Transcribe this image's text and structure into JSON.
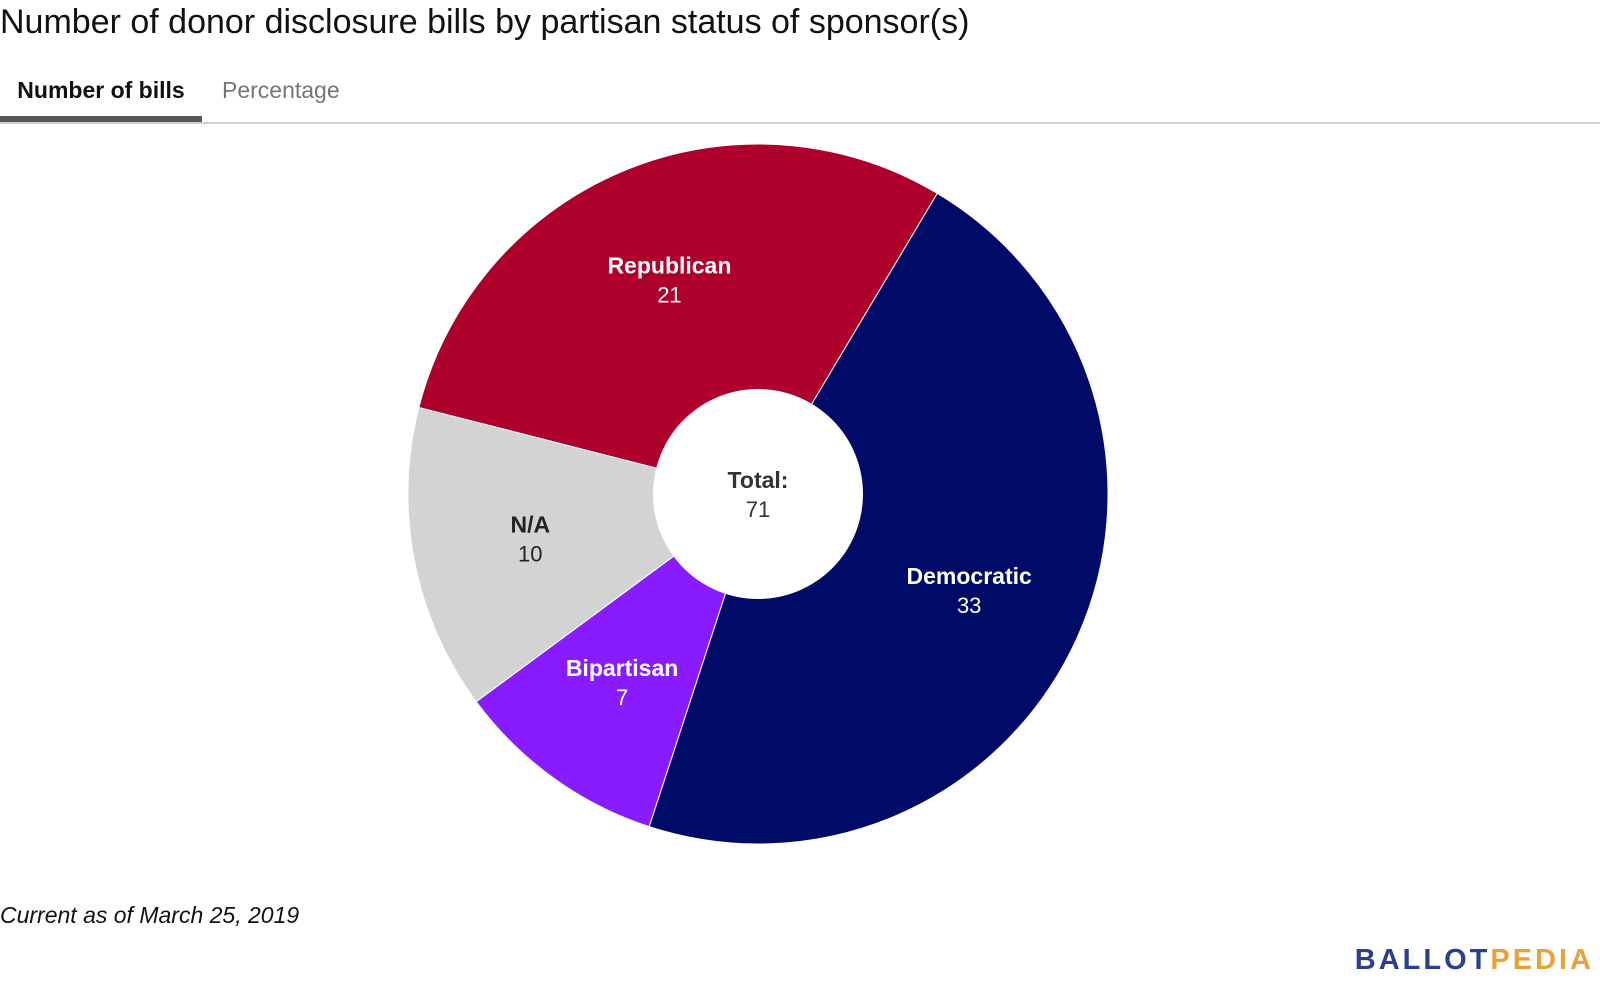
{
  "chart_data": {
    "type": "pie",
    "title": "Number of donor disclosure bills by partisan status of sponsor(s)",
    "slices": [
      {
        "label": "Democratic",
        "value": 33,
        "color": "#000b68",
        "label_color": "#ffffff"
      },
      {
        "label": "Bipartisan",
        "value": 7,
        "color": "#891cff",
        "label_color": "#ffffff"
      },
      {
        "label": "N/A",
        "value": 10,
        "color": "#d3d3d3",
        "label_color": "#222222"
      },
      {
        "label": "Republican",
        "value": 21,
        "color": "#ad002b",
        "label_color": "#ffffff"
      }
    ],
    "center_label": "Total:",
    "center_value": "71",
    "donut": true
  },
  "tabs": [
    {
      "label": "Number of bills",
      "active": true
    },
    {
      "label": "Percentage",
      "active": false
    }
  ],
  "footnote": "Current as of March 25, 2019",
  "logo": {
    "part1": "BALLOT",
    "part2": "PEDIA",
    "color1": "#2b3f8f",
    "color2": "#e8a23a"
  }
}
